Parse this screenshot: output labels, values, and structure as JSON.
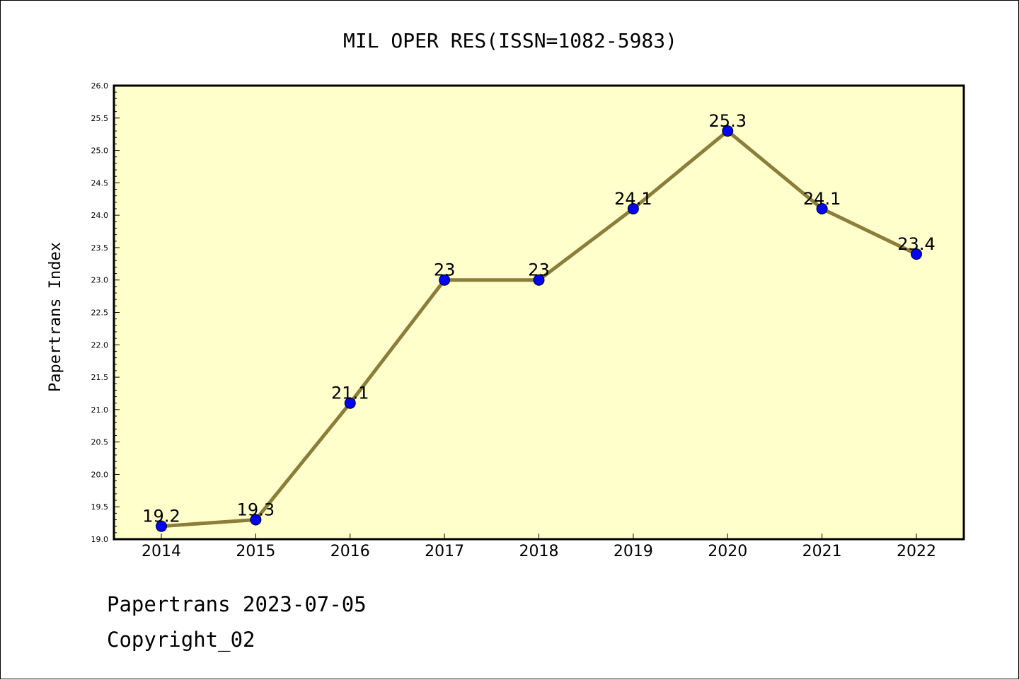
{
  "chart_data": {
    "type": "line",
    "title": "MIL OPER RES(ISSN=1082-5983)",
    "ylabel": "Papertrans Index",
    "xlabel": "",
    "categories": [
      "2014",
      "2015",
      "2016",
      "2017",
      "2018",
      "2019",
      "2020",
      "2021",
      "2022"
    ],
    "values": [
      19.2,
      19.3,
      21.1,
      23,
      23,
      24.1,
      25.3,
      24.1,
      23.4
    ],
    "data_labels": [
      "19.2",
      "19.3",
      "21.1",
      "23",
      "23",
      "24.1",
      "25.3",
      "24.1",
      "23.4"
    ],
    "ylim": [
      19.0,
      26.0
    ],
    "yticks": [
      "19.0",
      "19.5",
      "20.0",
      "20.5",
      "21.0",
      "21.5",
      "22.0",
      "22.5",
      "23.0",
      "23.5",
      "24.0",
      "24.5",
      "25.0",
      "25.5",
      "26.0"
    ],
    "grid": false,
    "legend": "none",
    "colors": {
      "plot_background": "#ffffcc",
      "line": "#8b7d3a",
      "marker": "#0000ff"
    }
  },
  "footer": {
    "date_line": "Papertrans 2023-07-05",
    "copyright": "Copyright_02"
  }
}
